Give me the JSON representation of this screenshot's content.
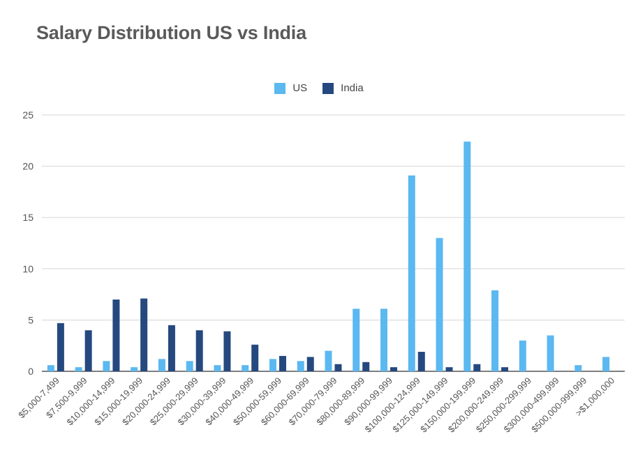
{
  "chart_data": {
    "type": "bar",
    "title": "Salary Distribution US vs India",
    "xlabel": "",
    "ylabel": "",
    "ylim": [
      0,
      25
    ],
    "yticks": [
      0,
      5,
      10,
      15,
      20,
      25
    ],
    "grid": true,
    "legend_position": "top-center",
    "categories": [
      "$5,000-7,499",
      "$7,500-9,999",
      "$10,000-14,999",
      "$15,000-19,999",
      "$20,000-24,999",
      "$25,000-29,999",
      "$30,000-39,999",
      "$40,000-49,999",
      "$50,000-59,999",
      "$60,000-69,999",
      "$70,000-79,999",
      "$80,000-89,999",
      "$90,000-99,999",
      "$100,000-124,999",
      "$125,000-149,999",
      "$150,000-199,999",
      "$200,000-249,999",
      "$250,000-299,999",
      "$300,000-499,999",
      "$500,000-999,999",
      ">$1,000,000"
    ],
    "series": [
      {
        "name": "US",
        "color": "#5bb8f0",
        "values": [
          0.6,
          0.4,
          1.0,
          0.4,
          1.2,
          1.0,
          0.6,
          0.6,
          1.2,
          1.0,
          2.0,
          6.1,
          6.1,
          19.1,
          13.0,
          22.4,
          7.9,
          3.0,
          3.5,
          0.6,
          1.4
        ]
      },
      {
        "name": "India",
        "color": "#25487f",
        "values": [
          4.7,
          4.0,
          7.0,
          7.1,
          4.5,
          4.0,
          3.9,
          2.6,
          1.5,
          1.4,
          0.7,
          0.9,
          0.4,
          1.9,
          0.4,
          0.7,
          0.4,
          0,
          0,
          0,
          0
        ]
      }
    ]
  }
}
